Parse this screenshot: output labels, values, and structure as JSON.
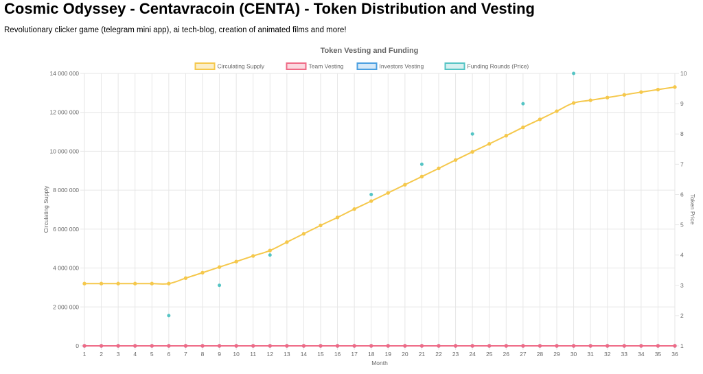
{
  "header": {
    "title": "Cosmic Odyssey - Centavracoin (CENTA) - Token Distribution and Vesting",
    "subtitle": "Revolutionary clicker game (telegram mini app), ai tech-blog, creation of animated films and more!"
  },
  "chart_data": {
    "type": "line",
    "title": "Token Vesting and Funding",
    "xlabel": "Month",
    "ylabel": "Circulating Supply",
    "y2label": "Token Price",
    "ylim": [
      0,
      14000000
    ],
    "y2lim": [
      1,
      10
    ],
    "yticks": [
      "0",
      "2 000 000",
      "4 000 000",
      "6 000 000",
      "8 000 000",
      "10 000 000",
      "12 000 000",
      "14 000 000"
    ],
    "y2ticks": [
      "1",
      "2",
      "3",
      "4",
      "5",
      "6",
      "7",
      "8",
      "9",
      "10"
    ],
    "grid": true,
    "legend_position": "top",
    "x": [
      "1",
      "2",
      "3",
      "4",
      "5",
      "6",
      "7",
      "8",
      "9",
      "10",
      "11",
      "12",
      "13",
      "14",
      "15",
      "16",
      "17",
      "18",
      "19",
      "20",
      "21",
      "22",
      "23",
      "24",
      "25",
      "26",
      "27",
      "28",
      "29",
      "30",
      "31",
      "32",
      "33",
      "34",
      "35",
      "36"
    ],
    "series": [
      {
        "name": "Circulating Supply",
        "color": "#f5c84c",
        "axis": "left",
        "type": "line",
        "values": [
          3200000,
          3200000,
          3200000,
          3200000,
          3200000,
          3200000,
          3480000,
          3760000,
          4050000,
          4330000,
          4620000,
          4900000,
          5330000,
          5760000,
          6190000,
          6600000,
          7030000,
          7440000,
          7860000,
          8280000,
          8700000,
          9120000,
          9550000,
          9970000,
          10380000,
          10800000,
          11230000,
          11640000,
          12060000,
          12480000,
          12620000,
          12760000,
          12900000,
          13040000,
          13170000,
          13300000
        ]
      },
      {
        "name": "Team Vesting",
        "color": "#ef6a86",
        "axis": "left",
        "type": "line",
        "values": [
          0,
          0,
          0,
          0,
          0,
          0,
          0,
          0,
          0,
          0,
          0,
          0,
          0,
          0,
          0,
          0,
          0,
          0,
          0,
          0,
          0,
          0,
          0,
          0,
          0,
          0,
          0,
          0,
          0,
          0,
          0,
          0,
          0,
          0,
          0,
          0
        ]
      },
      {
        "name": "Investors Vesting",
        "color": "#4a9fe0",
        "axis": "left",
        "type": "line",
        "values": [
          0,
          0,
          0,
          0,
          0,
          0,
          0,
          0,
          0,
          0,
          0,
          0,
          0,
          0,
          0,
          0,
          0,
          0,
          0,
          0,
          0,
          0,
          0,
          0,
          0,
          0,
          0,
          0,
          0,
          0,
          0,
          0,
          0,
          0,
          0,
          0
        ]
      },
      {
        "name": "Funding Rounds (Price)",
        "color": "#55c4c4",
        "axis": "right",
        "type": "scatter",
        "points": [
          [
            6,
            2
          ],
          [
            9,
            3
          ],
          [
            12,
            4
          ],
          [
            18,
            6
          ],
          [
            21,
            7
          ],
          [
            24,
            8
          ],
          [
            27,
            9
          ],
          [
            30,
            10
          ]
        ]
      }
    ]
  }
}
